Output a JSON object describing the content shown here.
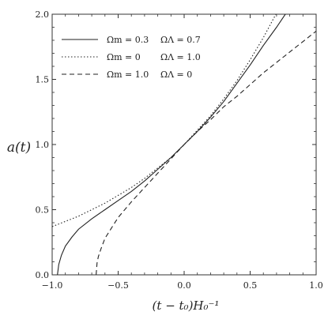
{
  "chart_data": {
    "type": "line",
    "xlabel": "(t − t₀)H₀⁻¹",
    "ylabel": "a(t)",
    "xlim": [
      -1.0,
      1.0
    ],
    "ylim": [
      0.0,
      2.0
    ],
    "x_ticks": [
      -1.0,
      -0.5,
      0.0,
      0.5,
      1.0
    ],
    "x_tick_labels": [
      "−1.0",
      "−0.5",
      "0.0",
      "0.5",
      "1.0"
    ],
    "y_ticks": [
      0.0,
      0.5,
      1.0,
      1.5,
      2.0
    ],
    "y_tick_labels": [
      "0.0",
      "0.5",
      "1.0",
      "1.5",
      "2.0"
    ],
    "grid": false,
    "legend_position": "top-left",
    "series": [
      {
        "name": "Ωm = 0.3 ΩΛ = 0.7",
        "omega_m_label": "Ωm = 0.3",
        "omega_l_label": "ΩΛ = 0.7",
        "style": "solid",
        "x": [
          -0.96,
          -0.95,
          -0.93,
          -0.9,
          -0.85,
          -0.8,
          -0.7,
          -0.6,
          -0.5,
          -0.4,
          -0.3,
          -0.2,
          -0.1,
          0.0,
          0.1,
          0.2,
          0.3,
          0.4,
          0.5,
          0.6,
          0.7,
          0.8
        ],
        "y": [
          0.0,
          0.08,
          0.15,
          0.22,
          0.29,
          0.35,
          0.43,
          0.5,
          0.57,
          0.64,
          0.72,
          0.81,
          0.9,
          1.0,
          1.1,
          1.21,
          1.33,
          1.47,
          1.61,
          1.76,
          1.9,
          2.05
        ]
      },
      {
        "name": "Ωm = 0 ΩΛ = 1.0",
        "omega_m_label": "Ωm = 0",
        "omega_l_label": "ΩΛ = 1.0",
        "style": "dotted",
        "x": [
          -1.0,
          -0.9,
          -0.8,
          -0.7,
          -0.6,
          -0.5,
          -0.4,
          -0.3,
          -0.2,
          -0.1,
          0.0,
          0.1,
          0.2,
          0.3,
          0.4,
          0.5,
          0.6,
          0.7,
          0.75
        ],
        "y": [
          0.37,
          0.41,
          0.45,
          0.5,
          0.55,
          0.61,
          0.67,
          0.74,
          0.82,
          0.9,
          1.0,
          1.11,
          1.22,
          1.35,
          1.49,
          1.65,
          1.82,
          2.01,
          2.12
        ]
      },
      {
        "name": "Ωm = 1.0 ΩΛ = 0",
        "omega_m_label": "Ωm = 1.0",
        "omega_l_label": "ΩΛ = 0",
        "style": "dashed",
        "x": [
          -0.667,
          -0.66,
          -0.65,
          -0.63,
          -0.6,
          -0.55,
          -0.5,
          -0.4,
          -0.3,
          -0.2,
          -0.1,
          0.0,
          0.1,
          0.2,
          0.3,
          0.4,
          0.5,
          0.6,
          0.7,
          0.8,
          0.9,
          1.0
        ],
        "y": [
          0.0,
          0.09,
          0.14,
          0.2,
          0.28,
          0.36,
          0.44,
          0.56,
          0.67,
          0.78,
          0.89,
          1.0,
          1.1,
          1.19,
          1.29,
          1.37,
          1.46,
          1.55,
          1.63,
          1.71,
          1.79,
          1.87
        ]
      }
    ]
  }
}
